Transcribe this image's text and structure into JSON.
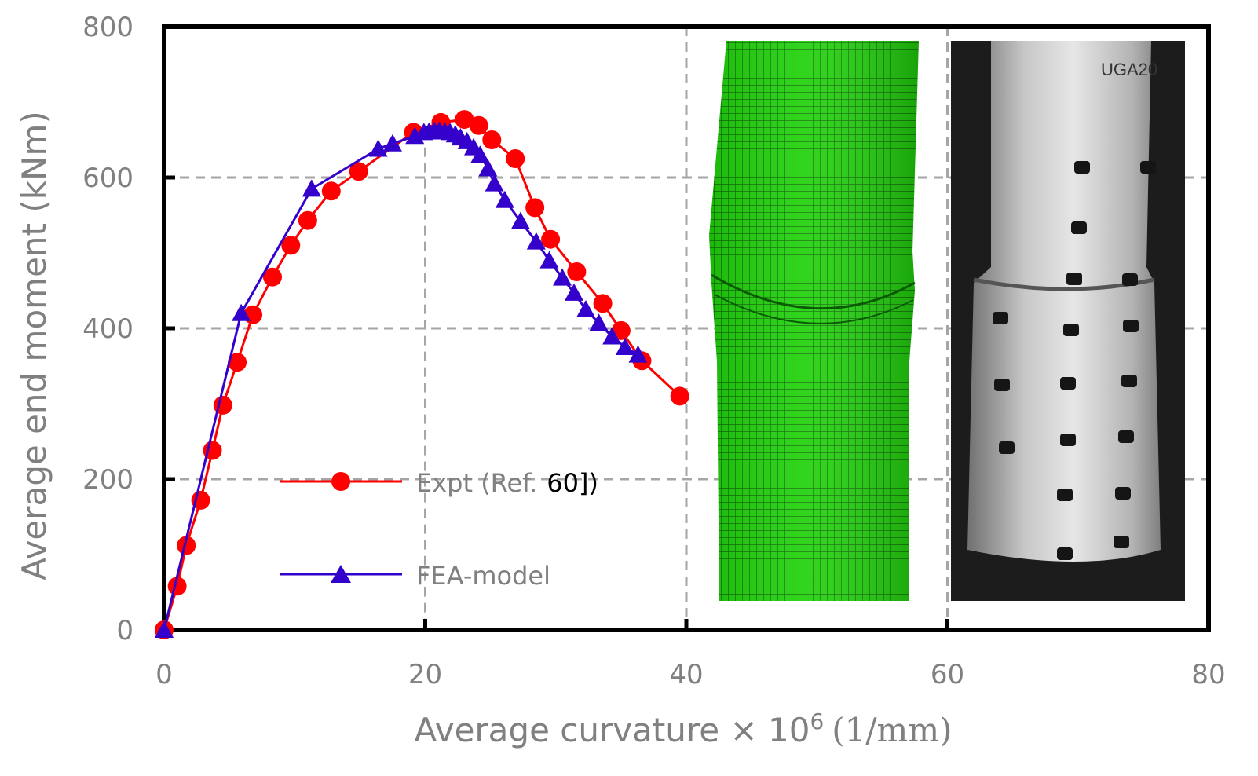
{
  "chart_data": {
    "type": "line",
    "title": "",
    "xlabel": "Average curvature × 10",
    "xlabel_superscript": "6",
    "xlabel_unit": "(1/mm)",
    "ylabel": "Average end moment (kNm)",
    "xlim": [
      0,
      80
    ],
    "ylim": [
      0,
      800
    ],
    "xticks": [
      0,
      20,
      40,
      60,
      80
    ],
    "yticks": [
      0,
      200,
      400,
      600,
      800
    ],
    "xtick_labels": [
      "0",
      "20",
      "40",
      "60",
      "80"
    ],
    "ytick_labels": [
      "0",
      "200",
      "400",
      "600",
      "800"
    ],
    "grid": true,
    "legend_position": "center-left",
    "series": [
      {
        "name": "Expt (Ref.",
        "name_suffix": "60])",
        "color": "#ff0000",
        "marker": "circle",
        "x": [
          0,
          1,
          1.7,
          2.8,
          3.7,
          4.5,
          5.6,
          6.8,
          8.3,
          9.7,
          11,
          12.8,
          14.9,
          19.1,
          21.2,
          23,
          24.1,
          25.1,
          26.9,
          28.4,
          29.6,
          31.6,
          33.6,
          35,
          36.6,
          39.5
        ],
        "y": [
          0,
          58,
          112,
          172,
          238,
          298,
          355,
          418,
          468,
          510,
          543,
          582,
          608,
          660,
          673,
          677,
          669,
          650,
          625,
          560,
          518,
          475,
          433,
          397,
          357,
          310
        ]
      },
      {
        "name": "FEA-model",
        "color": "#3300cc",
        "marker": "triangle",
        "x": [
          0,
          5.9,
          11.3,
          16.4,
          17.5,
          19.2,
          19.9,
          20.3,
          20.7,
          21.1,
          21.5,
          21.9,
          22.3,
          22.7,
          23.2,
          23.7,
          24.2,
          24.8,
          25.3,
          26.1,
          27.3,
          28.5,
          29.5,
          30.5,
          31.4,
          32.3,
          33.3,
          34.3,
          35.3,
          36.3
        ],
        "y": [
          0,
          420,
          585,
          638,
          645,
          655,
          660,
          661,
          662,
          662,
          661,
          660,
          657,
          653,
          648,
          640,
          630,
          612,
          592,
          570,
          542,
          515,
          490,
          467,
          447,
          425,
          407,
          389,
          375,
          365
        ]
      }
    ]
  },
  "inset_images": [
    {
      "name": "fea-deformed-mesh",
      "color": "#22cc00"
    },
    {
      "name": "test-specimen-photo",
      "color": "#b0b0b0",
      "label": "UGA20"
    }
  ]
}
